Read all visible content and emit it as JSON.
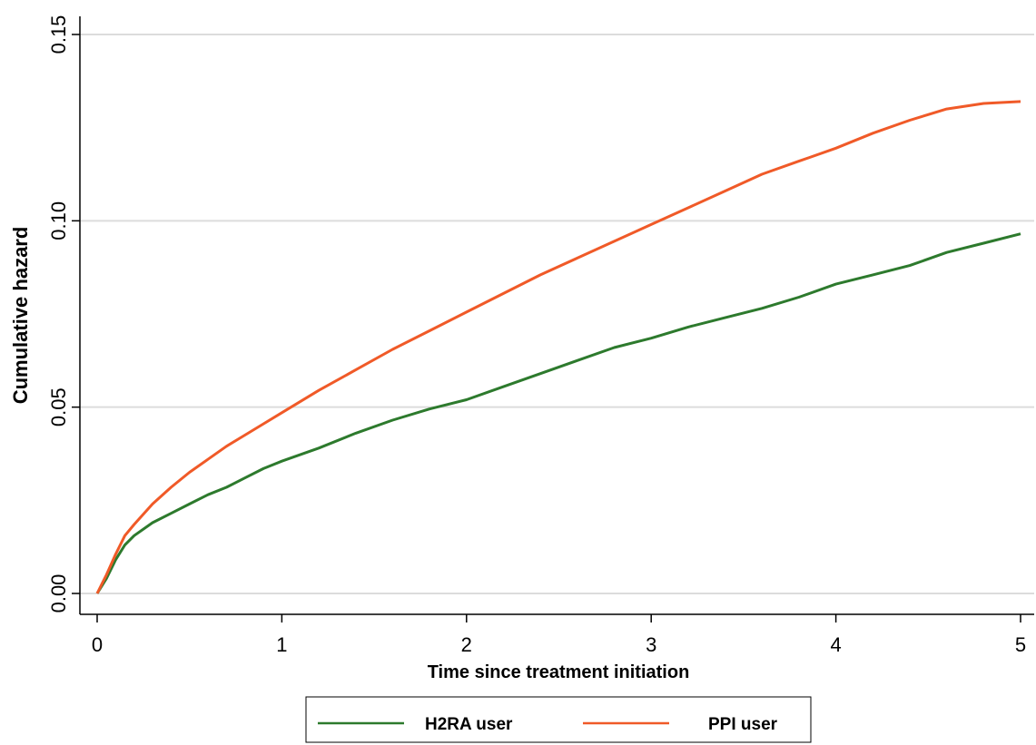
{
  "chart_data": {
    "type": "line",
    "title": "",
    "xlabel": "Time since treatment initiation",
    "ylabel": "Cumulative hazard",
    "xlim": [
      0,
      5
    ],
    "ylim": [
      0,
      0.15
    ],
    "x_ticks": [
      "0",
      "1",
      "2",
      "3",
      "4",
      "5"
    ],
    "y_ticks": [
      "0.00",
      "0.05",
      "0.10",
      "0.15"
    ],
    "grid": "horizontal",
    "legend_position": "bottom",
    "series": [
      {
        "name": "H2RA user",
        "color": "#2d7a2d",
        "x": [
          0,
          0.05,
          0.1,
          0.15,
          0.2,
          0.3,
          0.4,
          0.5,
          0.6,
          0.7,
          0.8,
          0.9,
          1.0,
          1.2,
          1.4,
          1.6,
          1.8,
          2.0,
          2.2,
          2.4,
          2.6,
          2.8,
          3.0,
          3.2,
          3.4,
          3.6,
          3.8,
          4.0,
          4.2,
          4.4,
          4.6,
          4.8,
          5.0
        ],
        "y": [
          0,
          0.004,
          0.009,
          0.013,
          0.0155,
          0.019,
          0.0215,
          0.024,
          0.0265,
          0.0285,
          0.031,
          0.0335,
          0.0355,
          0.039,
          0.043,
          0.0465,
          0.0495,
          0.052,
          0.0555,
          0.059,
          0.0625,
          0.066,
          0.0685,
          0.0715,
          0.074,
          0.0765,
          0.0795,
          0.083,
          0.0855,
          0.088,
          0.0915,
          0.094,
          0.0965
        ]
      },
      {
        "name": "PPI user",
        "color": "#f05a28",
        "x": [
          0,
          0.05,
          0.1,
          0.15,
          0.2,
          0.3,
          0.4,
          0.5,
          0.6,
          0.7,
          0.8,
          0.9,
          1.0,
          1.2,
          1.4,
          1.6,
          1.8,
          2.0,
          2.2,
          2.4,
          2.6,
          2.8,
          3.0,
          3.2,
          3.4,
          3.6,
          3.8,
          4.0,
          4.2,
          4.4,
          4.6,
          4.8,
          5.0
        ],
        "y": [
          0,
          0.005,
          0.0105,
          0.0155,
          0.0185,
          0.024,
          0.0285,
          0.0325,
          0.036,
          0.0395,
          0.0425,
          0.0455,
          0.0485,
          0.0545,
          0.06,
          0.0655,
          0.0705,
          0.0755,
          0.0805,
          0.0855,
          0.09,
          0.0945,
          0.099,
          0.1035,
          0.108,
          0.1125,
          0.116,
          0.1195,
          0.1235,
          0.127,
          0.13,
          0.1315,
          0.132
        ]
      }
    ]
  }
}
